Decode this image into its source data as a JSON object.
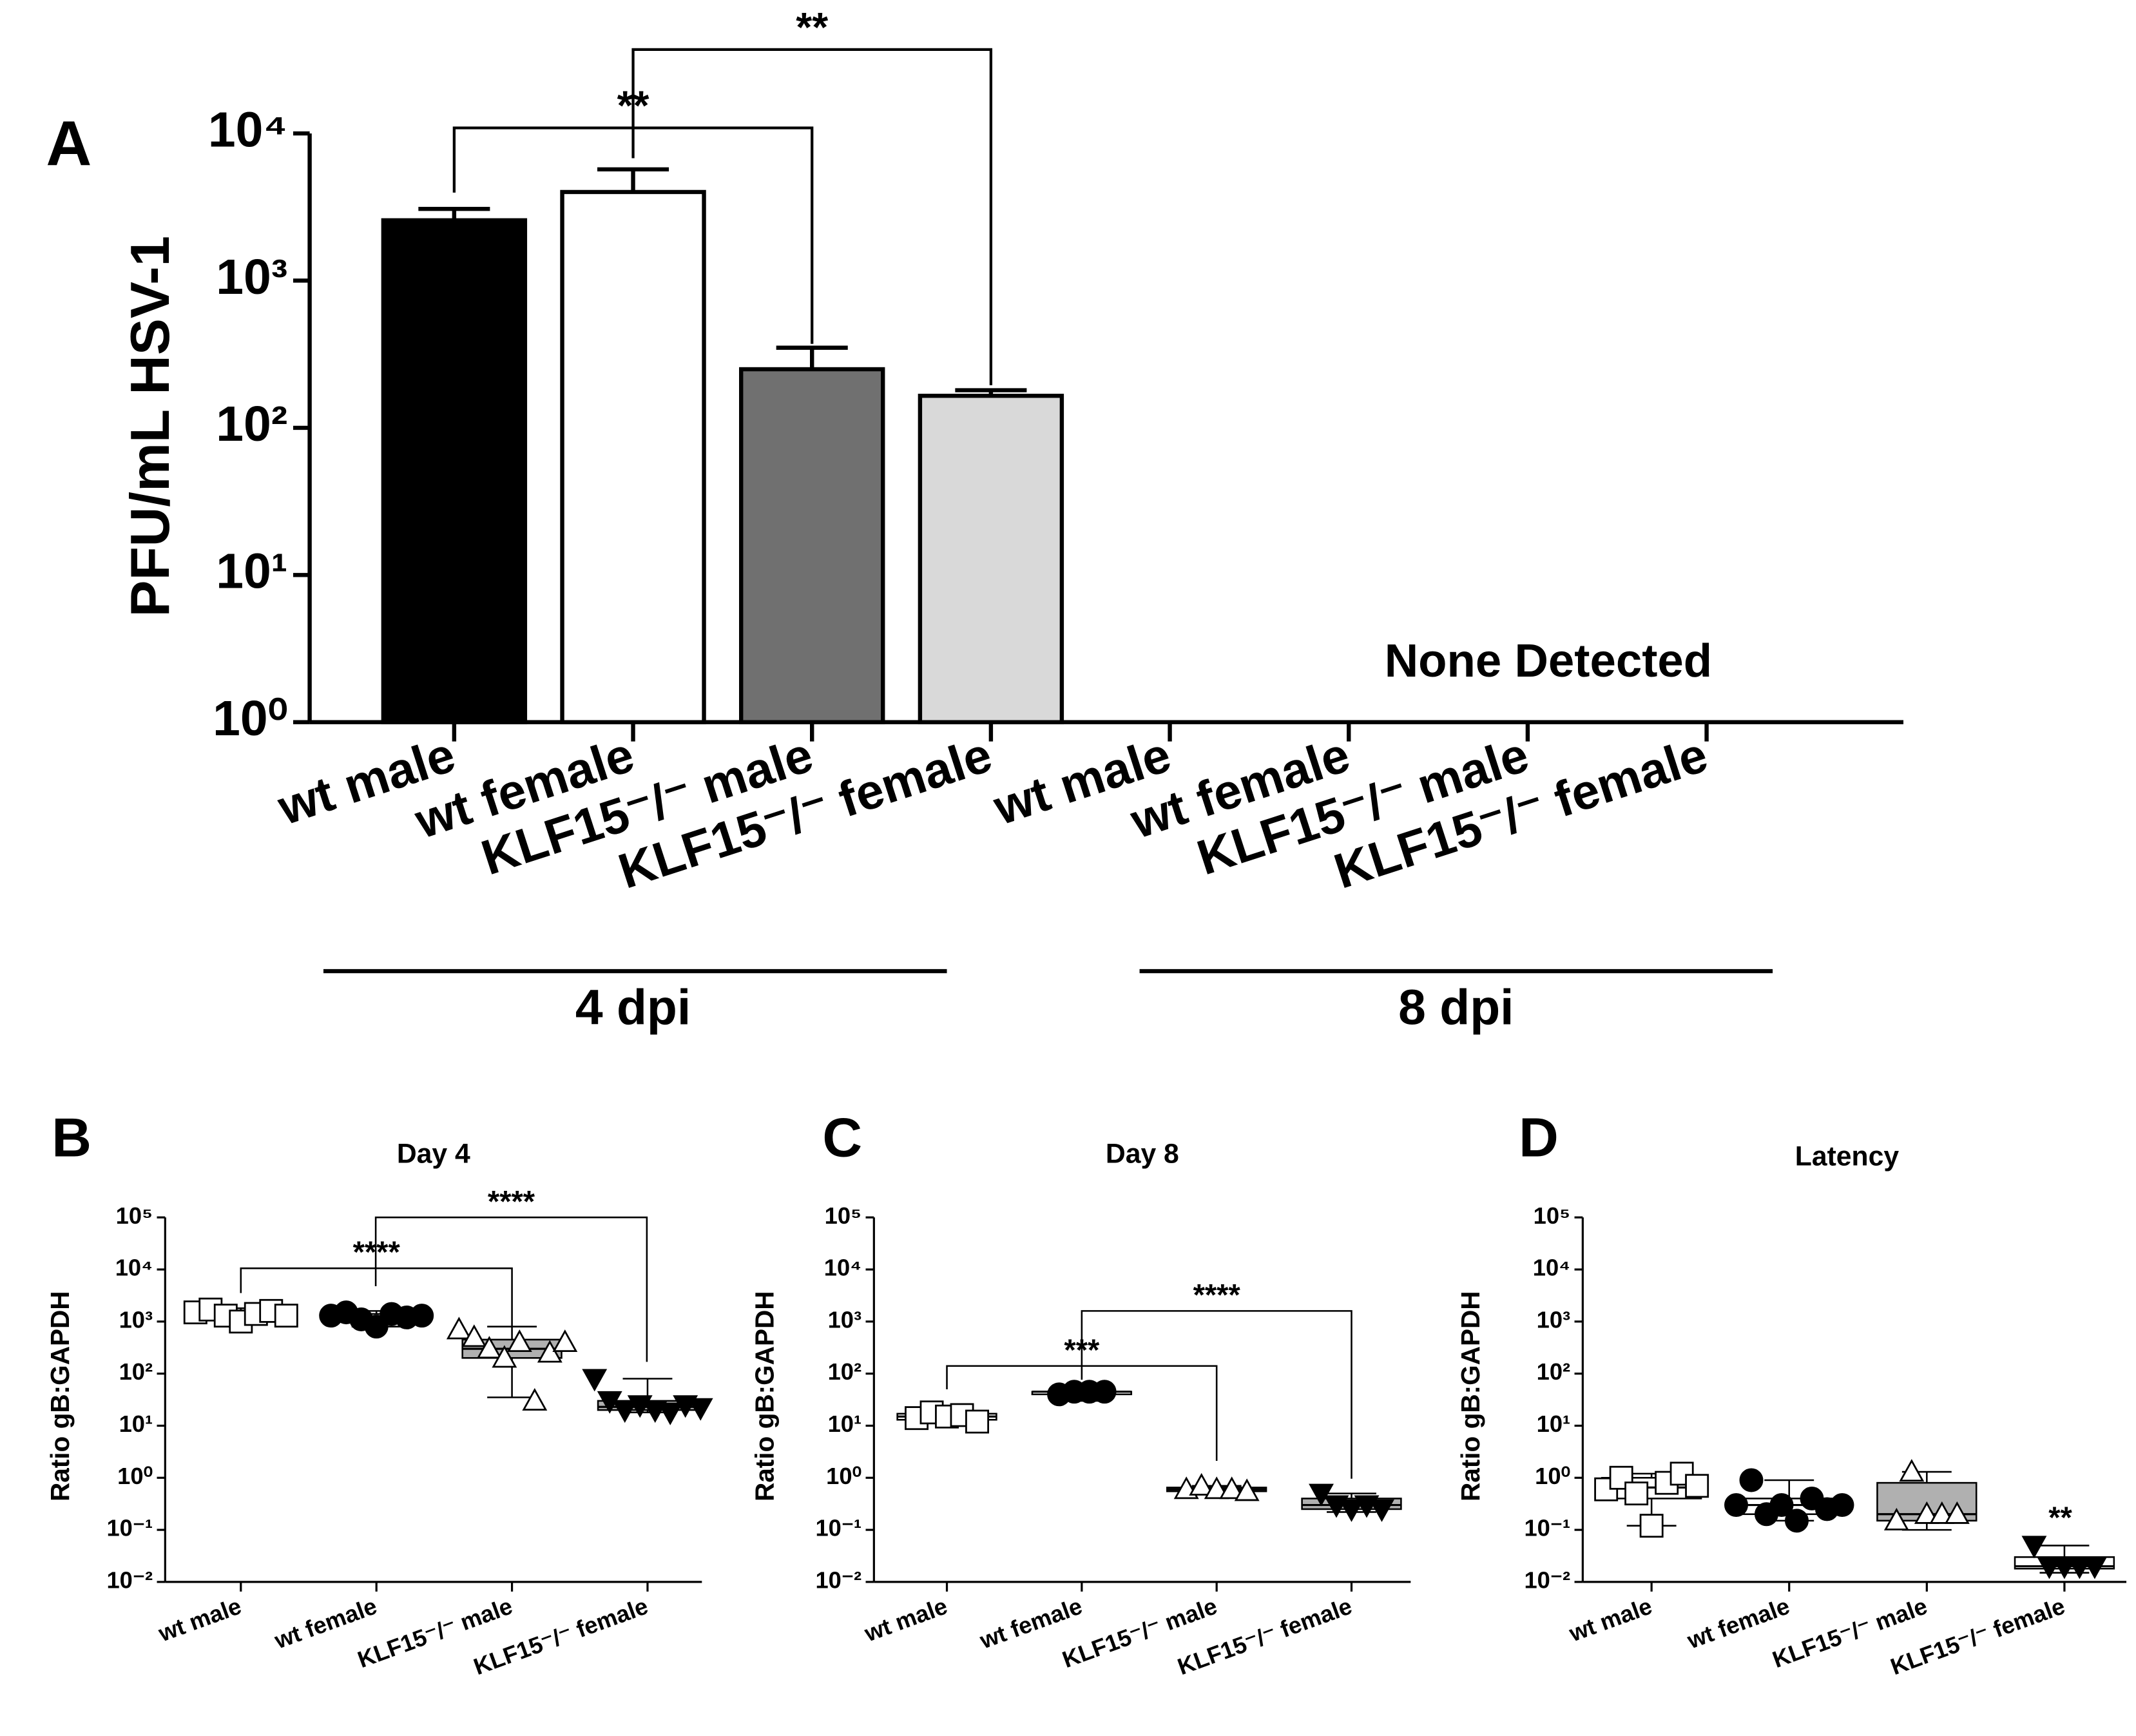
{
  "chart_data": [
    {
      "type": "bar",
      "panel": "A",
      "y_label": "PFU/mL HSV-1",
      "log_y": true,
      "categories": [
        "wt male",
        "wt female",
        "KLF15⁻/⁻ male",
        "KLF15⁻/⁻ female",
        "wt male",
        "wt female",
        "KLF15⁻/⁻ male",
        "KLF15⁻/⁻ female"
      ],
      "values": [
        2570,
        4000,
        250,
        165,
        null,
        null,
        null,
        null
      ],
      "errors": [
        500,
        1700,
        100,
        15,
        null,
        null,
        null,
        null
      ],
      "colors": [
        "#000000",
        "#ffffff",
        "#707070",
        "#d9d9d9",
        null,
        null,
        null,
        null
      ],
      "ylim": [
        1,
        10000
      ],
      "yticks": [
        {
          "value": 1,
          "label": "10⁰"
        },
        {
          "value": 10,
          "label": "10¹"
        },
        {
          "value": 100,
          "label": "10²"
        },
        {
          "value": 1000,
          "label": "10³"
        },
        {
          "value": 10000,
          "label": "10⁴"
        }
      ],
      "group_labels": [
        "4 dpi",
        "8 dpi"
      ],
      "annotation": "None Detected",
      "significance": [
        "**",
        "**"
      ]
    },
    {
      "type": "box",
      "panel": "B",
      "title": "Day 4",
      "y_label": "Ratio gB:GAPDH",
      "log_y": true,
      "categories": [
        "wt male",
        "wt female",
        "KLF15⁻/⁻ male",
        "KLF15⁻/⁻ female"
      ],
      "groups": [
        {
          "marker": "square",
          "marker_color": "#ffffff",
          "box_color": "#ffffff",
          "points": [
            1500,
            1700,
            1300,
            1000,
            1400,
            1600,
            1300
          ],
          "box": [
            1000,
            1200,
            1400,
            1600,
            1800
          ]
        },
        {
          "marker": "circle",
          "marker_color": "#000000",
          "box_color": "#ffffff",
          "points": [
            1300,
            1500,
            1100,
            800,
            1400,
            1200,
            1300
          ],
          "box": [
            800,
            1100,
            1250,
            1400,
            1600
          ]
        },
        {
          "marker": "triangle-up",
          "marker_color": "#ffffff",
          "box_color": "#b0b0b0",
          "points": [
            700,
            500,
            300,
            200,
            400,
            30,
            250,
            400
          ],
          "box": [
            35,
            200,
            300,
            450,
            800
          ]
        },
        {
          "marker": "triangle-down",
          "marker_color": "#000000",
          "box_color": "#b0b0b0",
          "points": [
            80,
            30,
            20,
            25,
            20,
            18,
            25,
            22
          ],
          "box": [
            18,
            20,
            23,
            30,
            80
          ]
        }
      ],
      "ylim": [
        0.01,
        100000
      ],
      "yticks": [
        {
          "value": 0.01,
          "label": "10⁻²"
        },
        {
          "value": 0.1,
          "label": "10⁻¹"
        },
        {
          "value": 1,
          "label": "10⁰"
        },
        {
          "value": 10,
          "label": "10¹"
        },
        {
          "value": 100,
          "label": "10²"
        },
        {
          "value": 1000,
          "label": "10³"
        },
        {
          "value": 10000,
          "label": "10⁴"
        },
        {
          "value": 100000,
          "label": "10⁵"
        }
      ],
      "significance": [
        "****",
        "****"
      ]
    },
    {
      "type": "box",
      "panel": "C",
      "title": "Day 8",
      "y_label": "Ratio gB:GAPDH",
      "log_y": true,
      "categories": [
        "wt male",
        "wt female",
        "KLF15⁻/⁻ male",
        "KLF15⁻/⁻ female"
      ],
      "groups": [
        {
          "marker": "square",
          "marker_color": "#ffffff",
          "box_color": "#ffffff",
          "points": [
            14,
            18,
            15,
            16,
            12
          ],
          "box": [
            12,
            13,
            15,
            17,
            18
          ]
        },
        {
          "marker": "circle",
          "marker_color": "#000000",
          "box_color": "#ffffff",
          "points": [
            40,
            45,
            45,
            45
          ],
          "box": [
            30,
            40,
            45,
            45,
            45
          ]
        },
        {
          "marker": "triangle-up",
          "marker_color": "#ffffff",
          "box_color": "#b0b0b0",
          "points": [
            0.6,
            0.7,
            0.6,
            0.6,
            0.55
          ],
          "box": [
            0.5,
            0.55,
            0.6,
            0.65,
            0.7
          ]
        },
        {
          "marker": "triangle-down",
          "marker_color": "#000000",
          "box_color": "#b0b0b0",
          "points": [
            0.5,
            0.3,
            0.25,
            0.3,
            0.25
          ],
          "box": [
            0.22,
            0.25,
            0.3,
            0.4,
            0.5
          ]
        }
      ],
      "ylim": [
        0.01,
        100000
      ],
      "yticks": [
        {
          "value": 0.01,
          "label": "10⁻²"
        },
        {
          "value": 0.1,
          "label": "10⁻¹"
        },
        {
          "value": 1,
          "label": "10⁰"
        },
        {
          "value": 10,
          "label": "10¹"
        },
        {
          "value": 100,
          "label": "10²"
        },
        {
          "value": 1000,
          "label": "10³"
        },
        {
          "value": 10000,
          "label": "10⁴"
        },
        {
          "value": 100000,
          "label": "10⁵"
        }
      ],
      "significance": [
        "***",
        "****"
      ]
    },
    {
      "type": "box",
      "panel": "D",
      "title": "Latency",
      "y_label": "Ratio gB:GAPDH",
      "log_y": true,
      "categories": [
        "wt male",
        "wt female",
        "KLF15⁻/⁻ male",
        "KLF15⁻/⁻ female"
      ],
      "groups": [
        {
          "marker": "square",
          "marker_color": "#ffffff",
          "box_color": "#ffffff",
          "points": [
            0.6,
            1.0,
            0.5,
            0.12,
            0.8,
            1.2,
            0.7
          ],
          "box": [
            0.12,
            0.4,
            0.65,
            1,
            1.2
          ]
        },
        {
          "marker": "circle",
          "marker_color": "#000000",
          "box_color": "#ffffff",
          "points": [
            0.3,
            0.9,
            0.2,
            0.3,
            0.15,
            0.4,
            0.25,
            0.3
          ],
          "box": [
            0.15,
            0.2,
            0.3,
            0.4,
            0.9
          ]
        },
        {
          "marker": "triangle-up",
          "marker_color": "#ffffff",
          "box_color": "#b0b0b0",
          "points": [
            0.15,
            1.3,
            0.2,
            0.2,
            0.2
          ],
          "box": [
            0.1,
            0.15,
            0.2,
            0.8,
            1.3
          ]
        },
        {
          "marker": "triangle-down",
          "marker_color": "#000000",
          "box_color": "#ffffff",
          "points": [
            0.05,
            0.02,
            0.02,
            0.02,
            0.02
          ],
          "box": [
            0.015,
            0.018,
            0.02,
            0.03,
            0.05
          ]
        }
      ],
      "ylim": [
        0.01,
        100000
      ],
      "yticks": [
        {
          "value": 0.01,
          "label": "10⁻²"
        },
        {
          "value": 0.1,
          "label": "10⁻¹"
        },
        {
          "value": 1,
          "label": "10⁰"
        },
        {
          "value": 10,
          "label": "10¹"
        },
        {
          "value": 100,
          "label": "10²"
        },
        {
          "value": 1000,
          "label": "10³"
        },
        {
          "value": 10000,
          "label": "10⁴"
        },
        {
          "value": 100000,
          "label": "10⁵"
        }
      ],
      "significance": [
        "**"
      ]
    }
  ]
}
